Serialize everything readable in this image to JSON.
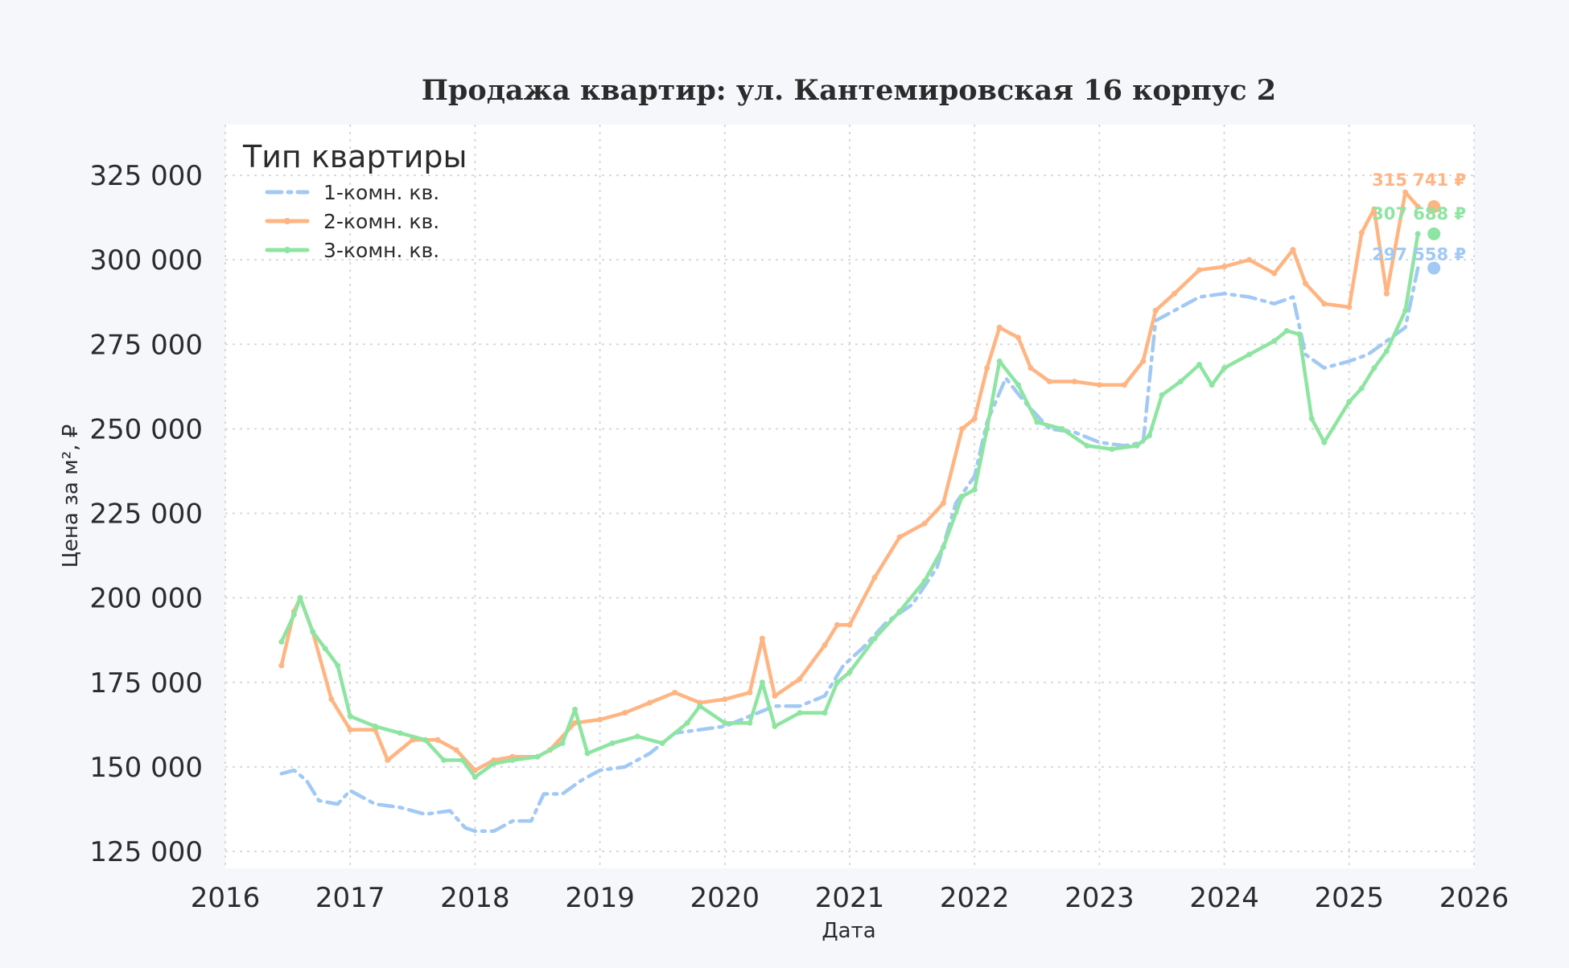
{
  "chart_data": {
    "type": "line",
    "title": "Продажа квартир: ул. Кантемировская 16 корпус 2",
    "xlabel": "Дата",
    "ylabel": "Цена за м², ₽",
    "xlim": [
      2016.0,
      2026.0
    ],
    "ylim": [
      120000,
      340000
    ],
    "x_ticks": [
      2016,
      2017,
      2018,
      2019,
      2020,
      2021,
      2022,
      2023,
      2024,
      2025,
      2026
    ],
    "x_tick_labels": [
      "2016",
      "2017",
      "2018",
      "2019",
      "2020",
      "2021",
      "2022",
      "2023",
      "2024",
      "2025",
      "2026"
    ],
    "y_ticks": [
      125000,
      150000,
      175000,
      200000,
      225000,
      250000,
      275000,
      300000,
      325000
    ],
    "y_tick_labels": [
      "125 000",
      "150 000",
      "175 000",
      "200 000",
      "225 000",
      "250 000",
      "275 000",
      "300 000",
      "325 000"
    ],
    "grid": true,
    "legend": {
      "title": "Тип квартиры",
      "placement": "top-left"
    },
    "series": [
      {
        "name": "1-комн. кв.",
        "color": "#a1c9f4",
        "style": "dashdot",
        "end_label": "297 558 ₽",
        "end_value": 297558,
        "x": [
          2016.45,
          2016.55,
          2016.65,
          2016.75,
          2016.9,
          2017.0,
          2017.2,
          2017.4,
          2017.6,
          2017.8,
          2017.92,
          2018.0,
          2018.15,
          2018.3,
          2018.45,
          2018.55,
          2018.7,
          2018.85,
          2019.0,
          2019.2,
          2019.4,
          2019.6,
          2019.8,
          2020.0,
          2020.2,
          2020.4,
          2020.6,
          2020.8,
          2020.95,
          2021.1,
          2021.3,
          2021.5,
          2021.7,
          2021.85,
          2022.0,
          2022.1,
          2022.25,
          2022.4,
          2022.6,
          2022.8,
          2023.0,
          2023.2,
          2023.35,
          2023.45,
          2023.6,
          2023.8,
          2024.0,
          2024.2,
          2024.4,
          2024.55,
          2024.65,
          2024.8,
          2025.0,
          2025.15,
          2025.3,
          2025.45,
          2025.55
        ],
        "values": [
          148000,
          149000,
          146000,
          140000,
          139000,
          143000,
          139000,
          138000,
          136000,
          137000,
          132000,
          131000,
          131000,
          134000,
          134000,
          142000,
          142000,
          146000,
          149000,
          150000,
          154000,
          160000,
          161000,
          162000,
          165000,
          168000,
          168000,
          171000,
          180000,
          185000,
          193000,
          198000,
          209000,
          228000,
          236000,
          252000,
          265000,
          258000,
          250000,
          249000,
          246000,
          245000,
          246000,
          282000,
          285000,
          289000,
          290000,
          289000,
          287000,
          289000,
          272000,
          268000,
          270000,
          272000,
          276000,
          280000,
          297558
        ]
      },
      {
        "name": "2-комн. кв.",
        "color": "#ffb482",
        "style": "solid",
        "end_label": "315 741 ₽",
        "end_value": 315741,
        "x": [
          2016.45,
          2016.55,
          2016.6,
          2016.7,
          2016.85,
          2017.0,
          2017.2,
          2017.3,
          2017.5,
          2017.7,
          2017.85,
          2018.0,
          2018.15,
          2018.3,
          2018.5,
          2018.6,
          2018.8,
          2019.0,
          2019.2,
          2019.4,
          2019.6,
          2019.8,
          2020.0,
          2020.2,
          2020.3,
          2020.4,
          2020.6,
          2020.8,
          2020.9,
          2021.0,
          2021.2,
          2021.4,
          2021.6,
          2021.75,
          2021.9,
          2022.0,
          2022.1,
          2022.2,
          2022.35,
          2022.45,
          2022.6,
          2022.8,
          2023.0,
          2023.2,
          2023.35,
          2023.45,
          2023.6,
          2023.8,
          2024.0,
          2024.2,
          2024.4,
          2024.55,
          2024.65,
          2024.8,
          2025.0,
          2025.1,
          2025.2,
          2025.3,
          2025.45,
          2025.55
        ],
        "values": [
          180000,
          196000,
          200000,
          190000,
          170000,
          161000,
          161000,
          152000,
          158000,
          158000,
          155000,
          149000,
          152000,
          153000,
          153000,
          155000,
          163000,
          164000,
          166000,
          169000,
          172000,
          169000,
          170000,
          172000,
          188000,
          171000,
          176000,
          186000,
          192000,
          192000,
          206000,
          218000,
          222000,
          228000,
          250000,
          253000,
          268000,
          280000,
          277000,
          268000,
          264000,
          264000,
          263000,
          263000,
          270000,
          285000,
          290000,
          297000,
          298000,
          300000,
          296000,
          303000,
          293000,
          287000,
          286000,
          308000,
          315000,
          290000,
          320000,
          315741
        ]
      },
      {
        "name": "3-комн. кв.",
        "color": "#8de5a1",
        "style": "solid",
        "end_label": "307 688 ₽",
        "end_value": 307688,
        "x": [
          2016.45,
          2016.55,
          2016.6,
          2016.7,
          2016.8,
          2016.9,
          2017.0,
          2017.2,
          2017.4,
          2017.6,
          2017.75,
          2017.9,
          2018.0,
          2018.15,
          2018.3,
          2018.5,
          2018.7,
          2018.8,
          2018.9,
          2019.1,
          2019.3,
          2019.5,
          2019.7,
          2019.8,
          2020.0,
          2020.2,
          2020.3,
          2020.4,
          2020.6,
          2020.8,
          2020.9,
          2021.0,
          2021.2,
          2021.4,
          2021.6,
          2021.75,
          2021.9,
          2022.0,
          2022.1,
          2022.2,
          2022.35,
          2022.5,
          2022.7,
          2022.9,
          2023.1,
          2023.3,
          2023.4,
          2023.5,
          2023.65,
          2023.8,
          2023.9,
          2024.0,
          2024.2,
          2024.4,
          2024.5,
          2024.6,
          2024.7,
          2024.8,
          2025.0,
          2025.1,
          2025.2,
          2025.3,
          2025.45,
          2025.55
        ],
        "values": [
          187000,
          195000,
          200000,
          190000,
          185000,
          180000,
          165000,
          162000,
          160000,
          158000,
          152000,
          152000,
          147000,
          151000,
          152000,
          153000,
          157000,
          167000,
          154000,
          157000,
          159000,
          157000,
          163000,
          168000,
          163000,
          163000,
          175000,
          162000,
          166000,
          166000,
          175000,
          178000,
          188000,
          196000,
          205000,
          215000,
          230000,
          232000,
          250000,
          270000,
          263000,
          252000,
          250000,
          245000,
          244000,
          245000,
          248000,
          260000,
          264000,
          269000,
          263000,
          268000,
          272000,
          276000,
          279000,
          278000,
          253000,
          246000,
          258000,
          262000,
          268000,
          273000,
          285000,
          307688
        ]
      }
    ]
  }
}
